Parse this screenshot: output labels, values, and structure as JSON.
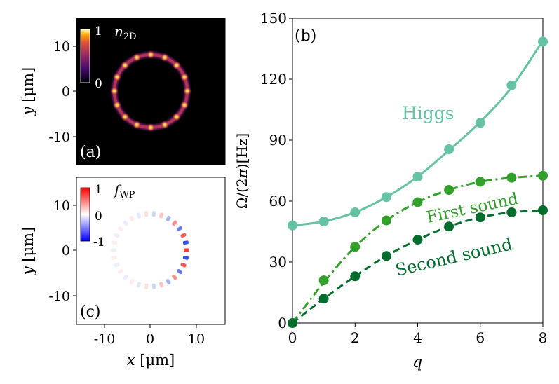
{
  "colors": {
    "higgs": "#66c2a5",
    "first_sound": "#33a02c",
    "second_sound": "#006d2c",
    "density_bg": "#000000",
    "density_peak": "#fde725"
  },
  "panels": {
    "a": {
      "label": "(a)",
      "colorbar_label_main": "n",
      "colorbar_label_sub": "2D",
      "colorbar_max": "1",
      "colorbar_min": "0",
      "ylabel": "y [μm]",
      "ylabel_var": "y",
      "ylabel_unit": " [μm]",
      "yticks": [
        "10",
        "0",
        "-10"
      ]
    },
    "c": {
      "label": "(c)",
      "colorbar_label_main": "f",
      "colorbar_label_sub": "WP",
      "colorbar_max": "1",
      "colorbar_mid": "0",
      "colorbar_min": "-1",
      "ylabel_var": "y",
      "ylabel_unit": " [μm]",
      "yticks": [
        "10",
        "0",
        "-10"
      ],
      "xticks": [
        "-10",
        "0",
        "10"
      ],
      "xlabel_var": "x",
      "xlabel_unit": " [μm]"
    }
  },
  "chart_data": [
    {
      "type": "line",
      "panel": "b",
      "label": "(b)",
      "xlabel": "q",
      "ylabel": "Ω/(2π)[Hz]",
      "ylabel_lhs": "Ω/(2",
      "ylabel_pi": "π",
      "ylabel_rhs": ")[Hz]",
      "xlim": [
        0,
        8
      ],
      "ylim": [
        0,
        150
      ],
      "xticks": [
        0,
        2,
        4,
        6,
        8
      ],
      "yticks": [
        0,
        30,
        60,
        90,
        120,
        150
      ],
      "series": [
        {
          "name": "Higgs",
          "points_x": [
            0,
            1,
            2,
            3,
            4,
            5,
            6,
            7,
            8
          ],
          "points_y": [
            48,
            50,
            54.5,
            62,
            72,
            85.5,
            98.5,
            117,
            138.5
          ],
          "line_x": [
            0,
            1,
            2,
            3,
            4,
            5,
            6,
            7,
            8
          ],
          "line_y": [
            48,
            50,
            54.5,
            62,
            72,
            85,
            99,
            116,
            139
          ],
          "linestyle": "solid"
        },
        {
          "name": "First sound",
          "points_x": [
            1,
            2,
            3,
            4,
            5,
            6,
            7,
            8
          ],
          "points_y": [
            21,
            37.5,
            50.5,
            59.5,
            65.5,
            69.5,
            71.5,
            72.5
          ],
          "line_x": [
            0,
            1,
            2,
            3,
            4,
            5,
            6,
            7,
            8
          ],
          "line_y": [
            0,
            20,
            37.5,
            50.5,
            59.5,
            65.5,
            69.5,
            71.5,
            72.5
          ],
          "linestyle": "dashdot"
        },
        {
          "name": "Second sound",
          "points_x": [
            0,
            1,
            2,
            3,
            4,
            5,
            6,
            7,
            8
          ],
          "points_y": [
            0,
            12,
            23,
            33,
            41,
            47.5,
            52,
            54.5,
            55.5
          ],
          "line_x": [
            0,
            1,
            2,
            3,
            4,
            5,
            6,
            7,
            8
          ],
          "line_y": [
            0,
            12,
            23,
            33,
            41,
            47.5,
            52,
            54.5,
            55.5
          ],
          "linestyle": "dashed"
        }
      ]
    }
  ]
}
